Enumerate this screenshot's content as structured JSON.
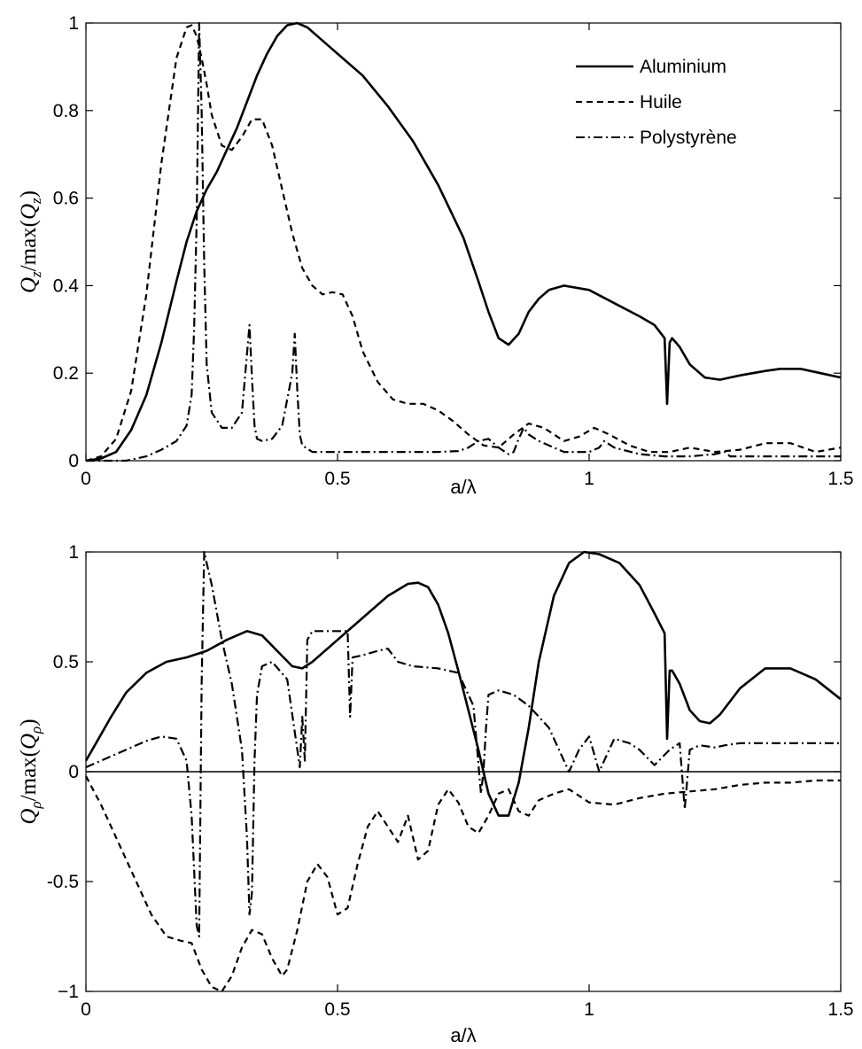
{
  "chart_data": [
    {
      "type": "line",
      "xlabel": "a/λ",
      "ylabel": "Q_z/max(Q_z)",
      "ylabel_parts": {
        "q": "Q",
        "qsub": "z",
        "mid": "/max(",
        "q2": "Q",
        "q2sub": "z",
        "end": ")"
      },
      "xlim": [
        0,
        1.5
      ],
      "ylim": [
        0,
        1
      ],
      "xticks": [
        0,
        0.5,
        1,
        1.5
      ],
      "xtick_labels": [
        "0",
        "0.5",
        "1",
        "1.5"
      ],
      "yticks": [
        0,
        0.2,
        0.4,
        0.6,
        0.8,
        1
      ],
      "ytick_labels": [
        "0",
        "0.2",
        "0.4",
        "0.6",
        "0.8",
        "1"
      ],
      "grid": false,
      "legend": "top-right",
      "series": [
        {
          "name": "Aluminium",
          "style": "solid",
          "color": "#000000",
          "x": [
            0,
            0.03,
            0.06,
            0.09,
            0.12,
            0.15,
            0.18,
            0.2,
            0.22,
            0.24,
            0.26,
            0.28,
            0.3,
            0.32,
            0.34,
            0.36,
            0.38,
            0.4,
            0.42,
            0.44,
            0.46,
            0.48,
            0.5,
            0.55,
            0.6,
            0.65,
            0.7,
            0.75,
            0.78,
            0.8,
            0.82,
            0.84,
            0.86,
            0.88,
            0.9,
            0.92,
            0.95,
            1.0,
            1.05,
            1.1,
            1.13,
            1.15,
            1.155,
            1.16,
            1.165,
            1.18,
            1.2,
            1.23,
            1.26,
            1.28,
            1.3,
            1.35,
            1.38,
            1.42,
            1.46,
            1.5
          ],
          "y": [
            0,
            0.005,
            0.02,
            0.07,
            0.15,
            0.27,
            0.41,
            0.5,
            0.57,
            0.62,
            0.66,
            0.71,
            0.76,
            0.82,
            0.88,
            0.93,
            0.97,
            0.995,
            1.0,
            0.99,
            0.97,
            0.95,
            0.93,
            0.88,
            0.81,
            0.73,
            0.63,
            0.51,
            0.41,
            0.34,
            0.28,
            0.265,
            0.29,
            0.34,
            0.37,
            0.39,
            0.4,
            0.39,
            0.36,
            0.33,
            0.31,
            0.28,
            0.13,
            0.27,
            0.28,
            0.26,
            0.22,
            0.19,
            0.185,
            0.19,
            0.195,
            0.205,
            0.21,
            0.21,
            0.2,
            0.19
          ]
        },
        {
          "name": "Huile",
          "style": "dashed",
          "color": "#000000",
          "x": [
            0,
            0.03,
            0.06,
            0.09,
            0.12,
            0.15,
            0.18,
            0.2,
            0.21,
            0.22,
            0.23,
            0.24,
            0.25,
            0.27,
            0.29,
            0.31,
            0.33,
            0.35,
            0.37,
            0.39,
            0.41,
            0.43,
            0.45,
            0.47,
            0.49,
            0.51,
            0.53,
            0.55,
            0.58,
            0.61,
            0.64,
            0.67,
            0.7,
            0.73,
            0.76,
            0.79,
            0.82,
            0.85,
            0.88,
            0.91,
            0.95,
            0.98,
            1.01,
            1.04,
            1.08,
            1.12,
            1.16,
            1.2,
            1.25,
            1.3,
            1.35,
            1.4,
            1.45,
            1.5
          ],
          "y": [
            0,
            0.01,
            0.05,
            0.16,
            0.38,
            0.68,
            0.92,
            0.99,
            0.995,
            0.97,
            0.92,
            0.86,
            0.79,
            0.72,
            0.71,
            0.74,
            0.78,
            0.78,
            0.72,
            0.62,
            0.52,
            0.44,
            0.4,
            0.38,
            0.385,
            0.38,
            0.33,
            0.25,
            0.18,
            0.14,
            0.13,
            0.13,
            0.115,
            0.09,
            0.06,
            0.035,
            0.03,
            0.06,
            0.085,
            0.075,
            0.045,
            0.055,
            0.075,
            0.06,
            0.035,
            0.02,
            0.02,
            0.03,
            0.02,
            0.025,
            0.04,
            0.04,
            0.02,
            0.03
          ]
        },
        {
          "name": "Polystyrène",
          "style": "dashdot",
          "color": "#000000",
          "x": [
            0,
            0.08,
            0.12,
            0.15,
            0.18,
            0.2,
            0.21,
            0.215,
            0.22,
            0.225,
            0.23,
            0.235,
            0.24,
            0.25,
            0.27,
            0.29,
            0.31,
            0.325,
            0.33,
            0.335,
            0.34,
            0.35,
            0.37,
            0.39,
            0.41,
            0.415,
            0.42,
            0.425,
            0.43,
            0.45,
            0.5,
            0.55,
            0.6,
            0.65,
            0.7,
            0.74,
            0.76,
            0.78,
            0.8,
            0.82,
            0.84,
            0.85,
            0.86,
            0.87,
            0.88,
            0.9,
            0.95,
            1.0,
            1.02,
            1.03,
            1.05,
            1.1,
            1.15,
            1.2,
            1.25,
            1.27,
            1.28,
            1.3,
            1.35,
            1.4,
            1.45,
            1.5
          ],
          "y": [
            0,
            0,
            0.01,
            0.025,
            0.045,
            0.08,
            0.15,
            0.3,
            0.55,
            1.0,
            0.8,
            0.45,
            0.22,
            0.11,
            0.075,
            0.075,
            0.11,
            0.31,
            0.19,
            0.08,
            0.05,
            0.045,
            0.05,
            0.08,
            0.2,
            0.29,
            0.16,
            0.06,
            0.035,
            0.02,
            0.02,
            0.02,
            0.02,
            0.02,
            0.02,
            0.022,
            0.03,
            0.045,
            0.05,
            0.03,
            0.015,
            0.02,
            0.05,
            0.075,
            0.06,
            0.045,
            0.02,
            0.02,
            0.03,
            0.045,
            0.03,
            0.015,
            0.01,
            0.01,
            0.015,
            0.02,
            0.01,
            0.01,
            0.01,
            0.01,
            0.01,
            0.01
          ]
        }
      ]
    },
    {
      "type": "line",
      "xlabel": "a/λ",
      "ylabel": "Q_ρ/max(Q_ρ)",
      "ylabel_parts": {
        "q": "Q",
        "qsub": "ρ",
        "mid": "/max(",
        "q2": "Q",
        "q2sub": "ρ",
        "end": ")"
      },
      "xlim": [
        0,
        1.5
      ],
      "ylim": [
        -1,
        1
      ],
      "xticks": [
        0,
        0.5,
        1,
        1.5
      ],
      "xtick_labels": [
        "0",
        "0.5",
        "1",
        "1.5"
      ],
      "yticks": [
        -1,
        -0.5,
        0,
        0.5,
        1
      ],
      "ytick_labels": [
        "−1",
        "-0.5",
        "0",
        "0.5",
        "1"
      ],
      "zero_line": true,
      "grid": false,
      "series": [
        {
          "name": "Aluminium",
          "style": "solid",
          "color": "#000000",
          "x": [
            0,
            0.02,
            0.05,
            0.08,
            0.12,
            0.16,
            0.2,
            0.24,
            0.28,
            0.32,
            0.35,
            0.38,
            0.41,
            0.43,
            0.45,
            0.5,
            0.55,
            0.6,
            0.64,
            0.66,
            0.68,
            0.7,
            0.72,
            0.74,
            0.76,
            0.78,
            0.8,
            0.82,
            0.84,
            0.86,
            0.88,
            0.9,
            0.93,
            0.96,
            0.99,
            1.02,
            1.06,
            1.1,
            1.13,
            1.15,
            1.155,
            1.16,
            1.165,
            1.18,
            1.2,
            1.22,
            1.24,
            1.26,
            1.3,
            1.35,
            1.4,
            1.45,
            1.5
          ],
          "y": [
            0.05,
            0.13,
            0.25,
            0.36,
            0.45,
            0.5,
            0.52,
            0.55,
            0.6,
            0.64,
            0.62,
            0.55,
            0.48,
            0.47,
            0.5,
            0.6,
            0.7,
            0.8,
            0.855,
            0.86,
            0.84,
            0.76,
            0.63,
            0.46,
            0.28,
            0.1,
            -0.1,
            -0.2,
            -0.2,
            -0.05,
            0.2,
            0.5,
            0.8,
            0.95,
            1.0,
            0.99,
            0.95,
            0.85,
            0.72,
            0.63,
            0.15,
            0.46,
            0.46,
            0.4,
            0.28,
            0.23,
            0.22,
            0.26,
            0.38,
            0.47,
            0.47,
            0.42,
            0.33
          ]
        },
        {
          "name": "Huile",
          "style": "dashed",
          "color": "#000000",
          "x": [
            0,
            0.03,
            0.06,
            0.1,
            0.13,
            0.16,
            0.19,
            0.21,
            0.23,
            0.25,
            0.27,
            0.29,
            0.31,
            0.33,
            0.35,
            0.37,
            0.39,
            0.4,
            0.42,
            0.44,
            0.46,
            0.48,
            0.5,
            0.52,
            0.54,
            0.56,
            0.58,
            0.6,
            0.62,
            0.64,
            0.66,
            0.68,
            0.7,
            0.72,
            0.74,
            0.76,
            0.78,
            0.8,
            0.82,
            0.84,
            0.86,
            0.88,
            0.9,
            0.93,
            0.96,
            1.0,
            1.05,
            1.1,
            1.15,
            1.2,
            1.25,
            1.3,
            1.35,
            1.4,
            1.45,
            1.5
          ],
          "y": [
            -0.02,
            -0.15,
            -0.3,
            -0.5,
            -0.65,
            -0.75,
            -0.77,
            -0.78,
            -0.9,
            -0.98,
            -1.0,
            -0.93,
            -0.8,
            -0.72,
            -0.74,
            -0.85,
            -0.93,
            -0.9,
            -0.72,
            -0.5,
            -0.42,
            -0.48,
            -0.65,
            -0.62,
            -0.42,
            -0.25,
            -0.18,
            -0.25,
            -0.32,
            -0.2,
            -0.4,
            -0.36,
            -0.15,
            -0.08,
            -0.14,
            -0.25,
            -0.28,
            -0.2,
            -0.1,
            -0.08,
            -0.18,
            -0.2,
            -0.13,
            -0.1,
            -0.08,
            -0.14,
            -0.15,
            -0.12,
            -0.1,
            -0.09,
            -0.08,
            -0.06,
            -0.05,
            -0.05,
            -0.04,
            -0.04
          ]
        },
        {
          "name": "Polystyrène",
          "style": "dashdot",
          "color": "#000000",
          "x": [
            0,
            0.04,
            0.08,
            0.12,
            0.15,
            0.18,
            0.2,
            0.21,
            0.22,
            0.225,
            0.23,
            0.235,
            0.24,
            0.25,
            0.27,
            0.29,
            0.31,
            0.32,
            0.325,
            0.33,
            0.335,
            0.34,
            0.35,
            0.37,
            0.4,
            0.42,
            0.425,
            0.43,
            0.435,
            0.44,
            0.45,
            0.47,
            0.5,
            0.52,
            0.525,
            0.53,
            0.55,
            0.58,
            0.6,
            0.62,
            0.65,
            0.7,
            0.74,
            0.77,
            0.785,
            0.79,
            0.795,
            0.8,
            0.82,
            0.85,
            0.88,
            0.92,
            0.95,
            0.96,
            0.98,
            1.0,
            1.02,
            1.03,
            1.05,
            1.08,
            1.1,
            1.13,
            1.16,
            1.18,
            1.19,
            1.2,
            1.22,
            1.25,
            1.27,
            1.3,
            1.35,
            1.4,
            1.45,
            1.5
          ],
          "y": [
            0.02,
            0.06,
            0.1,
            0.14,
            0.16,
            0.15,
            0.05,
            -0.2,
            -0.7,
            -0.75,
            0.4,
            1.0,
            0.95,
            0.85,
            0.6,
            0.4,
            0.1,
            -0.3,
            -0.65,
            -0.55,
            0.05,
            0.35,
            0.48,
            0.5,
            0.42,
            0.1,
            0.02,
            0.25,
            0.05,
            0.6,
            0.64,
            0.64,
            0.64,
            0.64,
            0.25,
            0.52,
            0.53,
            0.55,
            0.56,
            0.5,
            0.48,
            0.47,
            0.45,
            0.3,
            -0.1,
            0.0,
            0.2,
            0.35,
            0.37,
            0.35,
            0.3,
            0.2,
            0.05,
            0.0,
            0.1,
            0.16,
            0.0,
            0.05,
            0.15,
            0.13,
            0.1,
            0.03,
            0.1,
            0.13,
            -0.17,
            0.1,
            0.12,
            0.11,
            0.12,
            0.13,
            0.13,
            0.13,
            0.13,
            0.13
          ]
        }
      ]
    }
  ]
}
